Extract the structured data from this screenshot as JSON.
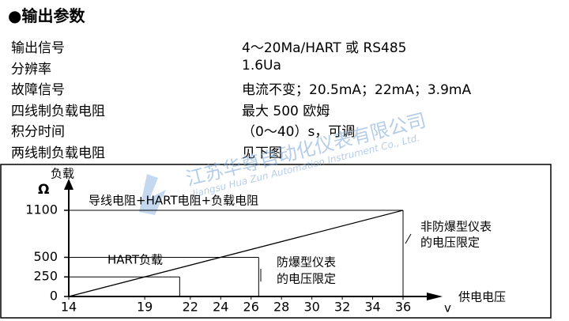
{
  "header": {
    "title": "●输出参数"
  },
  "table": {
    "rows": [
      [
        "输出信号",
        "4～20Ma/HART 或 RS485"
      ],
      [
        "分辨率",
        "1.6Ua"
      ],
      [
        "故障信号",
        "电流不变；20.5mA；22mA；3.9mA"
      ],
      [
        "四线制负载电阻",
        "最大 500 欧姆"
      ],
      [
        "积分时间",
        "（0～40）s，可调"
      ],
      [
        "两线制负载电阻",
        "见下图"
      ]
    ]
  },
  "watermark": {
    "name": "江苏华尊自动化仪表有限公司",
    "english": "Jiangsu Hua Zun Automation Instrument Co., Ltd."
  },
  "chart_data": {
    "type": "line",
    "y_label": "负载",
    "y_unit": "Ω",
    "x_label": "供电电压",
    "x_unit": "v",
    "x": [
      14,
      36
    ],
    "values": [
      0,
      1100
    ],
    "xlim": [
      14,
      36
    ],
    "ylim": [
      0,
      1100
    ],
    "xticks": [
      14,
      19,
      22,
      24,
      26,
      28,
      30,
      32,
      34,
      36
    ],
    "yticks": [
      0,
      250,
      500,
      1100
    ],
    "guides": [
      {
        "x": 21.3,
        "y": 250
      },
      {
        "x": 26.5,
        "y": 500
      },
      {
        "x": 36,
        "y": 1100
      }
    ],
    "annotations": [
      "导线电阻+HART电阻+负载电阻",
      "HART负载",
      "防爆型仪表",
      "的电压限定",
      "非防爆型仪表",
      "的电压限定"
    ]
  }
}
